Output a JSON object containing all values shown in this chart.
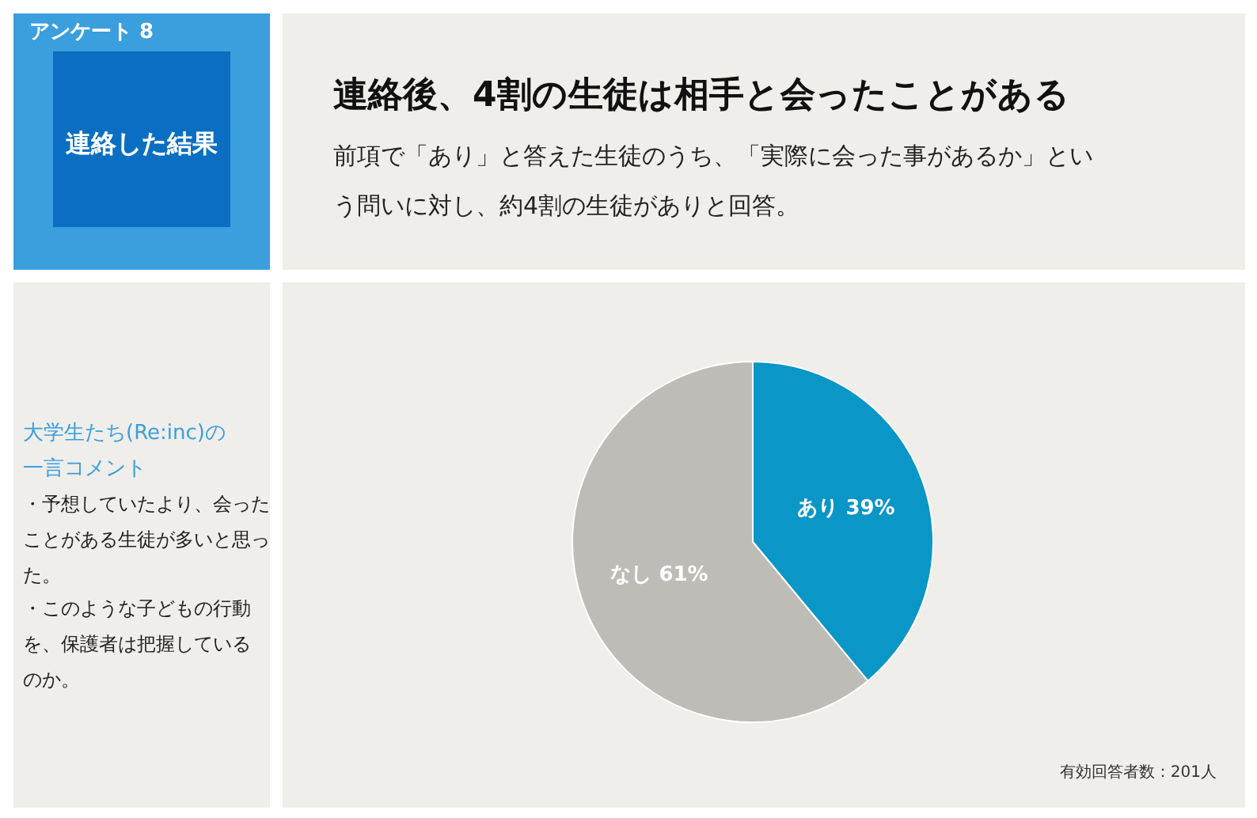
{
  "chart_data": {
    "type": "pie",
    "title": "連絡後、4割の生徒は相手と会ったことがある",
    "subtitle": "前項で「あり」と答えた生徒のうち、「実際に会った事があるか」という問いに対し、約4割の生徒がありと回答。",
    "categories": [
      "あり",
      "なし"
    ],
    "values": [
      39,
      61
    ],
    "colors": [
      "#0a96c6",
      "#bdbcb7"
    ],
    "value_labels": [
      "39%",
      "61%"
    ],
    "annotations": [
      "アンケート 8",
      "連絡した結果",
      "大学生たち(Re:inc)の一言コメント",
      "・予想していたより、会ったことがある生徒が多いと思った。",
      "・このような子どもの行動を、保護者は把握しているのか。",
      "有効回答者数：201人"
    ]
  }
}
